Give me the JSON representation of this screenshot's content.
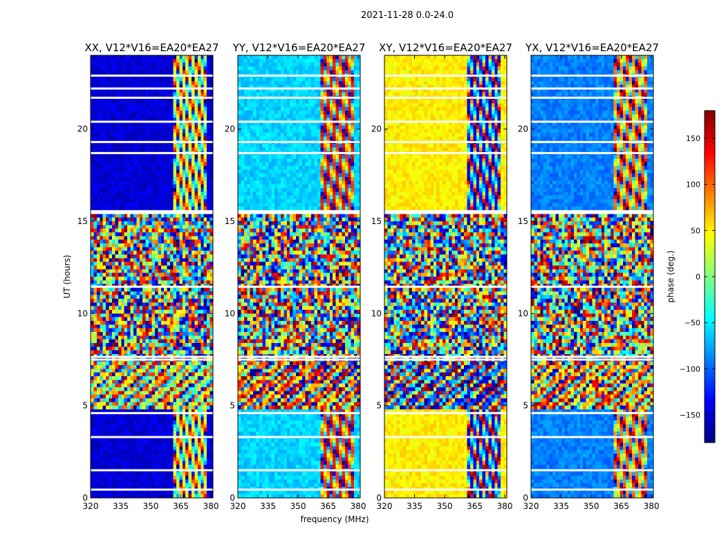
{
  "chart_data": {
    "type": "heatmap",
    "suptitle": "2021-11-28 0.0-24.0",
    "xlabel": "frequency (MHz)",
    "ylabel": "UT (hours)",
    "xlim": [
      320,
      381
    ],
    "ylim": [
      0,
      24
    ],
    "xticks": [
      320,
      335,
      350,
      365,
      380
    ],
    "yticks": [
      0,
      5,
      10,
      15,
      20
    ],
    "colorbar": {
      "label": "phase (deg.)",
      "range": [
        -180,
        180
      ],
      "ticks": [
        -150,
        -100,
        -50,
        0,
        50,
        100,
        150
      ],
      "tick_labels": [
        "−150",
        "−100",
        "−50",
        "0",
        "50",
        "100",
        "150"
      ],
      "colormap": "jet"
    },
    "panels": [
      {
        "title": "XX, V12*V16=EA20*EA27",
        "baseline_phase_deg": -150
      },
      {
        "title": "YY, V12*V16=EA20*EA27",
        "baseline_phase_deg": -60
      },
      {
        "title": "XY, V12*V16=EA20*EA27",
        "baseline_phase_deg": 50
      },
      {
        "title": "YX, V12*V16=EA20*EA27",
        "baseline_phase_deg": -90
      }
    ],
    "time_segments": [
      {
        "start": 0.0,
        "end": 4.7,
        "pattern": "stable"
      },
      {
        "start": 4.7,
        "end": 7.4,
        "pattern": "fringes"
      },
      {
        "start": 7.4,
        "end": 15.4,
        "pattern": "noisy"
      },
      {
        "start": 15.4,
        "end": 24.0,
        "pattern": "stable"
      }
    ],
    "gap_rows_ut": [
      0.45,
      1.5,
      3.3,
      4.6,
      7.5,
      7.65,
      11.45,
      15.45,
      15.55,
      18.7,
      19.3,
      20.4,
      21.7,
      22.2,
      22.9
    ]
  }
}
